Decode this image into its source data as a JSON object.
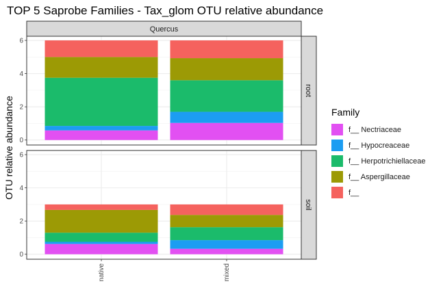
{
  "chart_data": {
    "type": "bar",
    "stacked": true,
    "title": "TOP 5 Saprobe Families - Tax_glom OTU relative abundance",
    "xlabel": "",
    "ylabel": "OTU relative abundance",
    "column_facet": "Quercus",
    "categories": [
      "native",
      "mixed"
    ],
    "ylim": [
      -0.3,
      6.25
    ],
    "yticks": [
      0,
      2,
      4,
      6
    ],
    "legend_title": "Family",
    "legend_position": "right",
    "grid": true,
    "series": [
      {
        "name": "f__ Nectriaceae",
        "color": "#E250F2"
      },
      {
        "name": "f__ Hypocreaceae",
        "color": "#1C9DF2"
      },
      {
        "name": "f__ Herpotrichiellaceae",
        "color": "#1BBB6B"
      },
      {
        "name": "f__ Aspergillaceae",
        "color": "#9C9A05"
      },
      {
        "name": "f__",
        "color": "#F5625E"
      }
    ],
    "facets": [
      {
        "row": "root",
        "values": {
          "f__ Nectriaceae": [
            0.58,
            1.03
          ],
          "f__ Hypocreaceae": [
            0.27,
            0.67
          ],
          "f__ Herpotrichiellaceae": [
            2.9,
            1.9
          ],
          "f__ Aspergillaceae": [
            1.25,
            1.33
          ],
          "f__": [
            1.0,
            1.07
          ]
        }
      },
      {
        "row": "soil",
        "values": {
          "f__ Nectriaceae": [
            0.62,
            0.33
          ],
          "f__ Hypocreaceae": [
            0.13,
            0.52
          ],
          "f__ Herpotrichiellaceae": [
            0.55,
            0.78
          ],
          "f__ Aspergillaceae": [
            1.37,
            0.74
          ],
          "f__": [
            0.33,
            0.63
          ]
        }
      }
    ]
  }
}
